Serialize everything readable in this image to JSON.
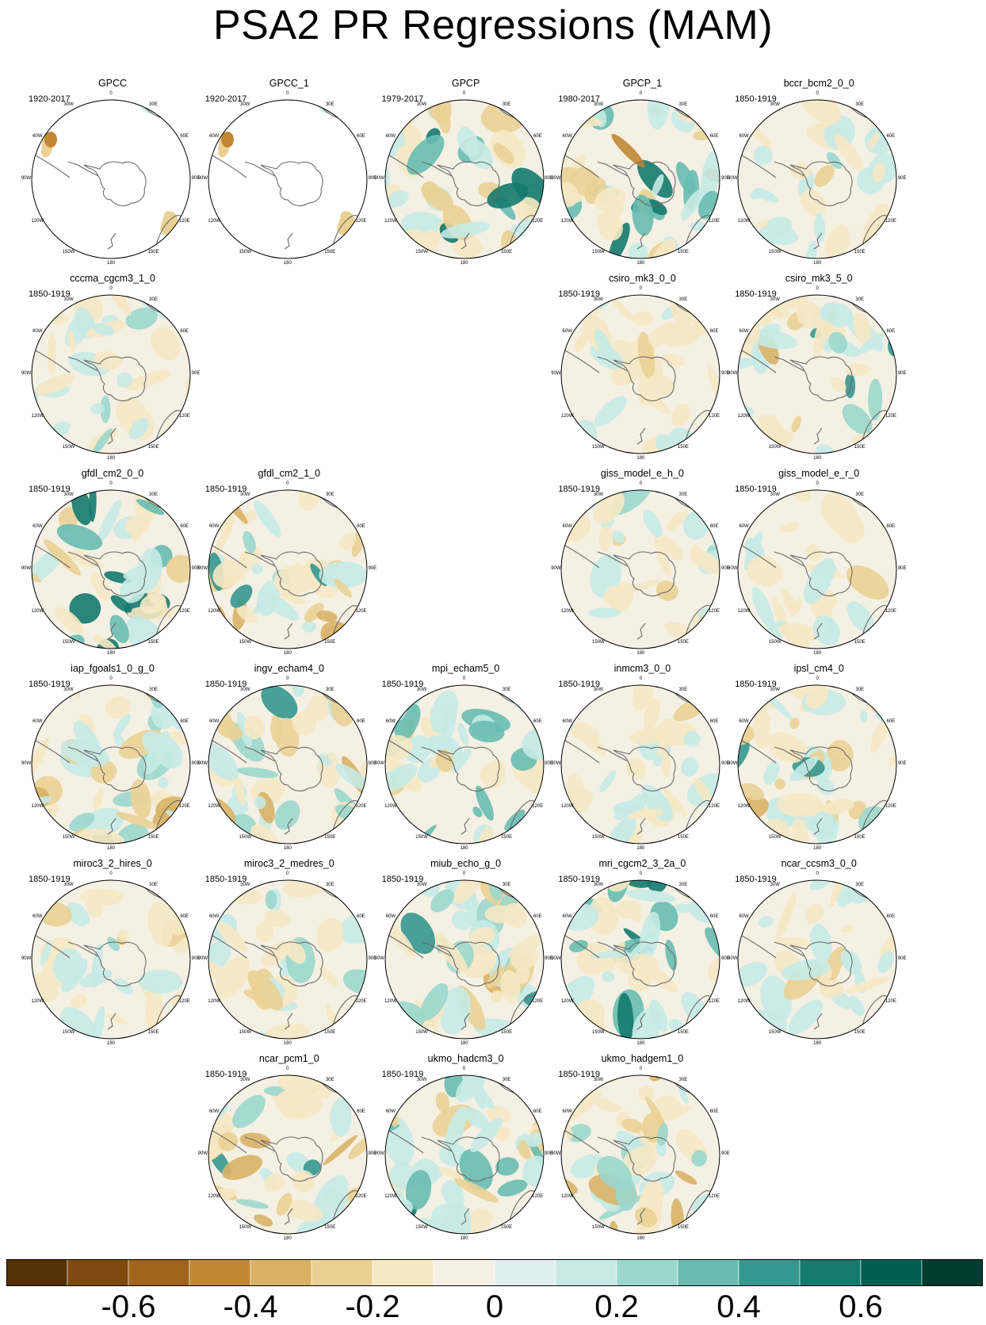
{
  "title": "PSA2 PR Regressions (MAM)",
  "panels": [
    {
      "name": "GPCC",
      "years": "1920-2017",
      "variant": "gpcc"
    },
    {
      "name": "GPCC_1",
      "years": "1920-2017",
      "variant": "gpcc"
    },
    {
      "name": "GPCP",
      "years": "1979-2017",
      "variant": "strong"
    },
    {
      "name": "GPCP_1",
      "years": "1980-2017",
      "variant": "strong"
    },
    {
      "name": "bccr_bcm2_0_0",
      "years": "1850-1919",
      "variant": "weak"
    },
    {
      "name": "cccma_cgcm3_1_0",
      "years": "1850-1919",
      "variant": "weak"
    },
    null,
    null,
    {
      "name": "csiro_mk3_0_0",
      "years": "1850-1919",
      "variant": "weak"
    },
    {
      "name": "csiro_mk3_5_0",
      "years": "1850-1919",
      "variant": "mixed"
    },
    {
      "name": "gfdl_cm2_0_0",
      "years": "1850-1919",
      "variant": "green"
    },
    {
      "name": "gfdl_cm2_1_0",
      "years": "1850-1919",
      "variant": "mixed"
    },
    null,
    {
      "name": "giss_model_e_h_0",
      "years": "1850-1919",
      "variant": "weak"
    },
    {
      "name": "giss_model_e_r_0",
      "years": "1850-1919",
      "variant": "weak"
    },
    {
      "name": "iap_fgoals1_0_g_0",
      "years": "1850-1919",
      "variant": "mixed"
    },
    {
      "name": "ingv_echam4_0",
      "years": "1850-1919",
      "variant": "mixed"
    },
    {
      "name": "mpi_echam5_0",
      "years": "1850-1919",
      "variant": "green"
    },
    {
      "name": "inmcm3_0_0",
      "years": "1850-1919",
      "variant": "weak"
    },
    {
      "name": "ipsl_cm4_0",
      "years": "1850-1919",
      "variant": "mixed"
    },
    {
      "name": "miroc3_2_hires_0",
      "years": "1850-1919",
      "variant": "weak"
    },
    {
      "name": "miroc3_2_medres_0",
      "years": "1850-1919",
      "variant": "weak"
    },
    {
      "name": "miub_echo_g_0",
      "years": "1850-1919",
      "variant": "mixed"
    },
    {
      "name": "mri_cgcm2_3_2a_0",
      "years": "1850-1919",
      "variant": "green"
    },
    {
      "name": "ncar_ccsm3_0_0",
      "years": "1850-1919",
      "variant": "weak"
    },
    null,
    {
      "name": "ncar_pcm1_0",
      "years": "1850-1919",
      "variant": "mixed"
    },
    {
      "name": "ukmo_hadcm3_0",
      "years": "1850-1919",
      "variant": "green"
    },
    {
      "name": "ukmo_hadgem1_0",
      "years": "1850-1919",
      "variant": "mixed"
    }
  ],
  "lon_labels": [
    "0",
    "30E",
    "60E",
    "90E",
    "120E",
    "150E",
    "180",
    "150W",
    "120W",
    "90W",
    "60W",
    "30W"
  ],
  "colorbar": {
    "colors": [
      "#543005",
      "#7f4a0f",
      "#a0651a",
      "#c18733",
      "#d9b266",
      "#ead193",
      "#f6e8c3",
      "#f5f0e4",
      "#e0f0ee",
      "#c7eae5",
      "#9bd7cd",
      "#68bcb1",
      "#35978f",
      "#147a6e",
      "#015e52",
      "#003c30"
    ],
    "labels": [
      "-0.6",
      "-0.4",
      "-0.2",
      "0",
      "0.2",
      "0.4",
      "0.6"
    ],
    "label_values": [
      -0.6,
      -0.4,
      -0.2,
      0,
      0.2,
      0.4,
      0.6
    ],
    "range": [
      -0.8,
      0.8
    ]
  }
}
